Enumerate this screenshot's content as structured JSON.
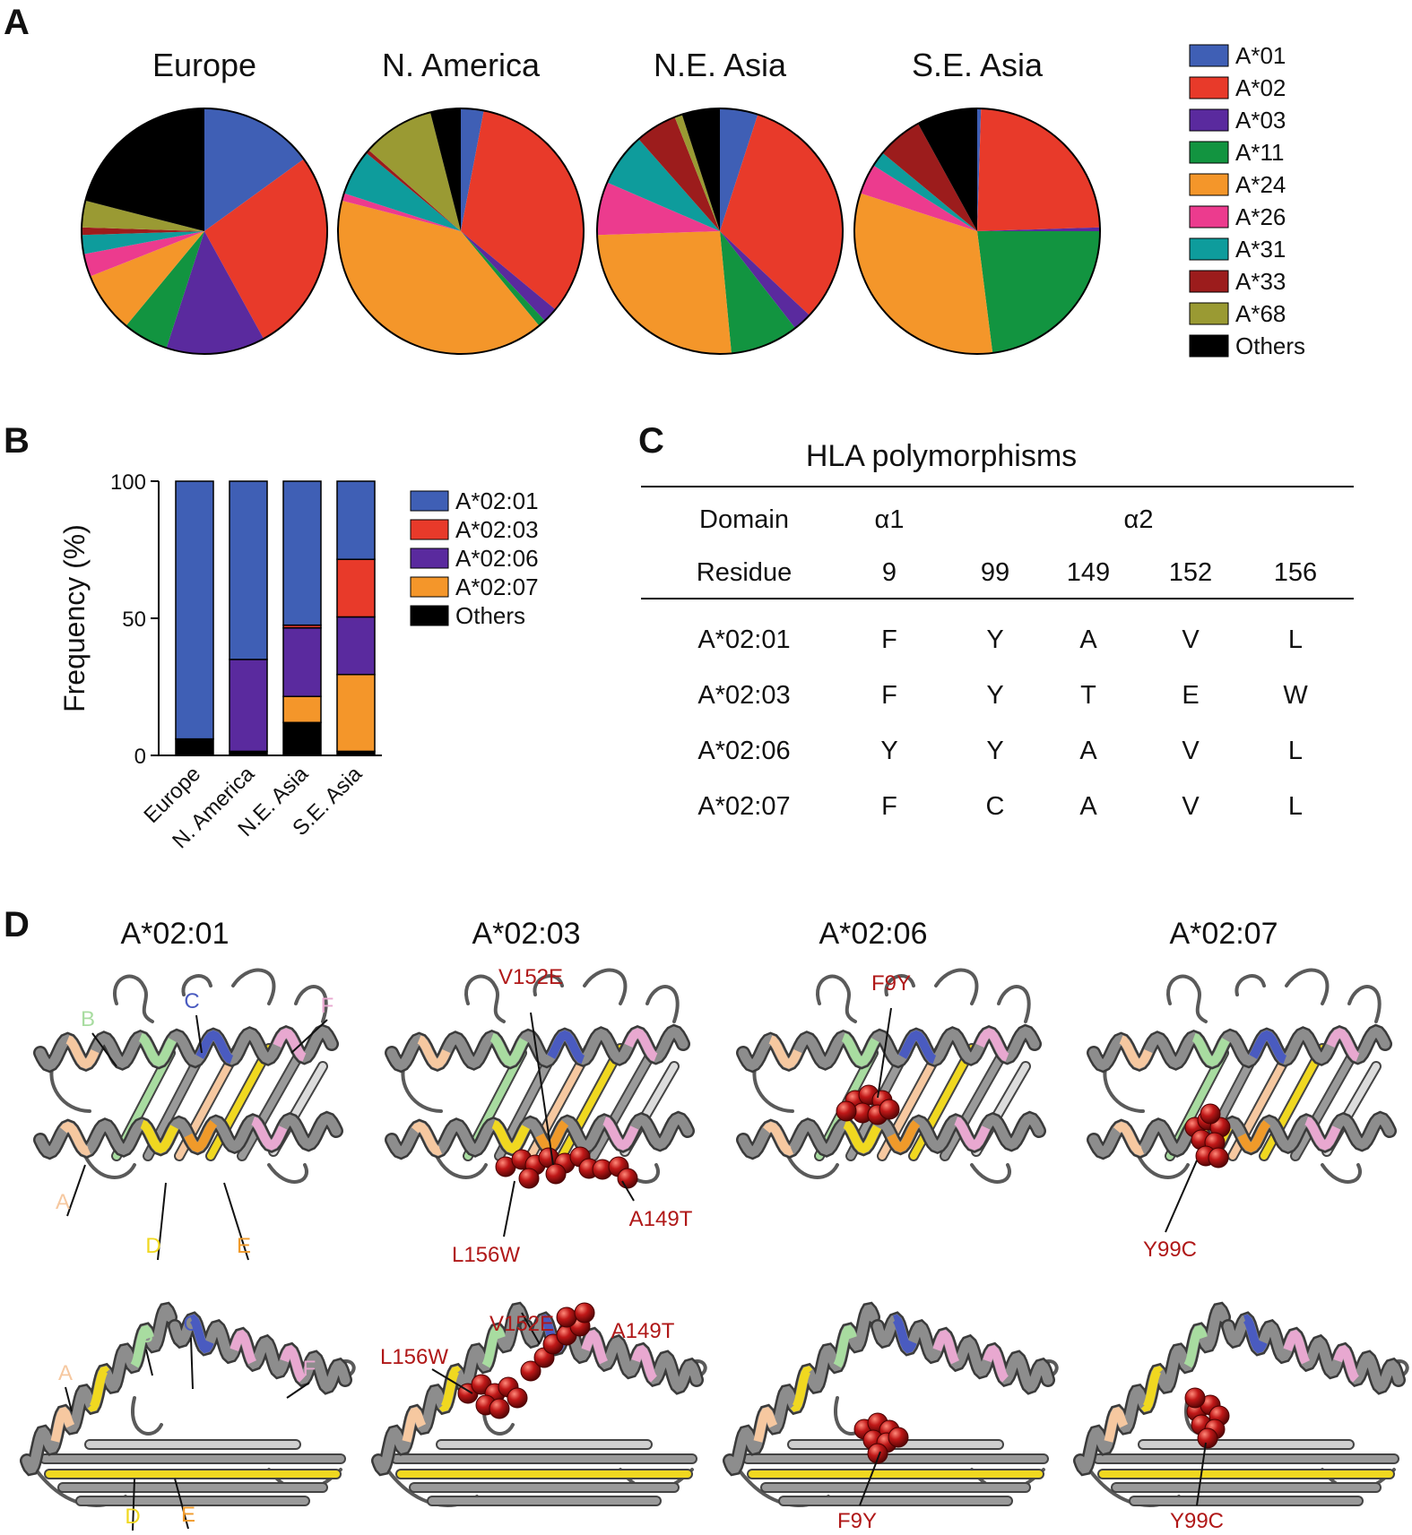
{
  "panels": {
    "a": "A",
    "b": "B",
    "c": "C",
    "d": "D"
  },
  "allele_colors": {
    "A*01": "#3f5fb5",
    "A*02": "#e83a2a",
    "A*03": "#5a2a9e",
    "A*11": "#129440",
    "A*24": "#f4962a",
    "A*26": "#ec3b8e",
    "A*31": "#0e9c9c",
    "A*33": "#9c1c1c",
    "A*68": "#9a9a33",
    "Others": "#000000"
  },
  "pie_legend": [
    "A*01",
    "A*02",
    "A*03",
    "A*11",
    "A*24",
    "A*26",
    "A*31",
    "A*33",
    "A*68",
    "Others"
  ],
  "chart_data": [
    {
      "type": "pie",
      "panel": "A",
      "regions": [
        {
          "title": "Europe",
          "slices": [
            {
              "label": "A*01",
              "value": 15
            },
            {
              "label": "A*02",
              "value": 27
            },
            {
              "label": "A*03",
              "value": 13
            },
            {
              "label": "A*11",
              "value": 6
            },
            {
              "label": "A*24",
              "value": 8
            },
            {
              "label": "A*26",
              "value": 3
            },
            {
              "label": "A*31",
              "value": 2.5
            },
            {
              "label": "A*33",
              "value": 1
            },
            {
              "label": "A*68",
              "value": 3.5
            },
            {
              "label": "Others",
              "value": 21
            }
          ]
        },
        {
          "title": "N. America",
          "slices": [
            {
              "label": "A*01",
              "value": 3
            },
            {
              "label": "A*02",
              "value": 33
            },
            {
              "label": "A*03",
              "value": 2
            },
            {
              "label": "A*11",
              "value": 1
            },
            {
              "label": "A*24",
              "value": 40
            },
            {
              "label": "A*26",
              "value": 1
            },
            {
              "label": "A*31",
              "value": 6
            },
            {
              "label": "A*33",
              "value": 0.5
            },
            {
              "label": "A*68",
              "value": 9.5
            },
            {
              "label": "Others",
              "value": 4
            }
          ]
        },
        {
          "title": "N.E. Asia",
          "slices": [
            {
              "label": "A*01",
              "value": 5
            },
            {
              "label": "A*02",
              "value": 32
            },
            {
              "label": "A*03",
              "value": 2.5
            },
            {
              "label": "A*11",
              "value": 9
            },
            {
              "label": "A*24",
              "value": 26
            },
            {
              "label": "A*26",
              "value": 7
            },
            {
              "label": "A*31",
              "value": 7
            },
            {
              "label": "A*33",
              "value": 5.5
            },
            {
              "label": "A*68",
              "value": 1
            },
            {
              "label": "Others",
              "value": 5
            }
          ]
        },
        {
          "title": "S.E. Asia",
          "slices": [
            {
              "label": "A*01",
              "value": 0.5
            },
            {
              "label": "A*02",
              "value": 24
            },
            {
              "label": "A*03",
              "value": 0.5
            },
            {
              "label": "A*11",
              "value": 23
            },
            {
              "label": "A*24",
              "value": 32
            },
            {
              "label": "A*26",
              "value": 4
            },
            {
              "label": "A*31",
              "value": 2
            },
            {
              "label": "A*33",
              "value": 6
            },
            {
              "label": "A*68",
              "value": 0
            },
            {
              "label": "Others",
              "value": 8
            }
          ]
        }
      ]
    },
    {
      "type": "bar",
      "panel": "B",
      "stacked": true,
      "categories": [
        "Europe",
        "N. America",
        "N.E. Asia",
        "S.E. Asia"
      ],
      "ylabel": "Frequency (%)",
      "ylim": [
        0,
        100
      ],
      "yticks": [
        0,
        50,
        100
      ],
      "series": [
        {
          "name": "Others",
          "color": "#000000",
          "values": [
            6,
            1.5,
            12,
            1.5
          ]
        },
        {
          "name": "A*02:07",
          "color": "#f4962a",
          "values": [
            0,
            0,
            9.5,
            28
          ]
        },
        {
          "name": "A*02:06",
          "color": "#5a2a9e",
          "values": [
            0,
            33.5,
            25,
            21
          ]
        },
        {
          "name": "A*02:03",
          "color": "#e83a2a",
          "values": [
            0,
            0,
            1,
            21
          ]
        },
        {
          "name": "A*02:01",
          "color": "#3f5fb5",
          "values": [
            94,
            65,
            52.5,
            28.5
          ]
        }
      ],
      "legend": [
        "A*02:01",
        "A*02:03",
        "A*02:06",
        "A*02:07",
        "Others"
      ]
    }
  ],
  "table": {
    "title": "HLA polymorphisms",
    "domain_label": "Domain",
    "residue_label": "Residue",
    "domains": [
      "α1",
      "α2"
    ],
    "residues": [
      "9",
      "99",
      "149",
      "152",
      "156"
    ],
    "rows": [
      {
        "allele": "A*02:01",
        "cells": [
          {
            "v": "F",
            "m": false
          },
          {
            "v": "Y",
            "m": false
          },
          {
            "v": "A",
            "m": false
          },
          {
            "v": "V",
            "m": false
          },
          {
            "v": "L",
            "m": false
          }
        ]
      },
      {
        "allele": "A*02:03",
        "cells": [
          {
            "v": "F",
            "m": false
          },
          {
            "v": "Y",
            "m": false
          },
          {
            "v": "T",
            "m": true
          },
          {
            "v": "E",
            "m": true
          },
          {
            "v": "W",
            "m": true
          }
        ]
      },
      {
        "allele": "A*02:06",
        "cells": [
          {
            "v": "Y",
            "m": true
          },
          {
            "v": "Y",
            "m": false
          },
          {
            "v": "A",
            "m": false
          },
          {
            "v": "V",
            "m": false
          },
          {
            "v": "L",
            "m": false
          }
        ]
      },
      {
        "allele": "A*02:07",
        "cells": [
          {
            "v": "F",
            "m": false
          },
          {
            "v": "C",
            "m": true
          },
          {
            "v": "A",
            "m": false
          },
          {
            "v": "V",
            "m": false
          },
          {
            "v": "L",
            "m": false
          }
        ]
      }
    ],
    "mutation_color": "#d42a1e"
  },
  "structures": {
    "titles": [
      "A*02:01",
      "A*02:03",
      "A*02:06",
      "A*02:07"
    ],
    "pocket_labels": {
      "A": "A",
      "B": "B",
      "C": "C",
      "D": "D",
      "E": "E",
      "F": "F"
    },
    "pocket_colors": {
      "A": "#f6c8a0",
      "B": "#a8dca0",
      "C": "#4a5bc0",
      "D": "#f0d820",
      "E": "#f09a2a",
      "F": "#e8a8d0"
    },
    "mutation_labels": {
      "v152e": "V152E",
      "a149t": "A149T",
      "l156w": "L156W",
      "f9y": "F9Y",
      "y99c": "Y99C"
    },
    "mutation_color": "#b01818"
  }
}
